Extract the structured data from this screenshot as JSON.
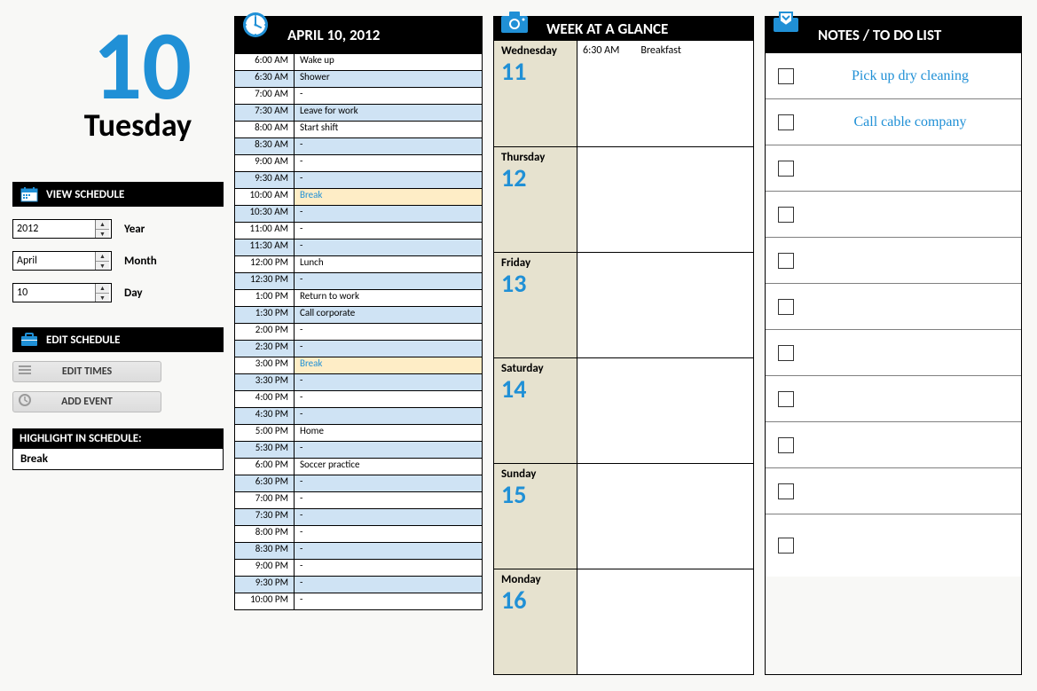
{
  "accent_color": "#2090d6",
  "alt_row_color": "#cfe3f4",
  "highlight_row_color": "#feedc6",
  "week_left_bg": "#e6e2cf",
  "sidebar": {
    "big_date": "10",
    "weekday": "Tuesday",
    "view_hdr": "VIEW SCHEDULE",
    "year_label": "Year",
    "year_value": "2012",
    "month_label": "Month",
    "month_value": "April",
    "day_label": "Day",
    "day_value": "10",
    "edit_hdr": "EDIT SCHEDULE",
    "btn_edit_times": "EDIT TIMES",
    "btn_add_event": "ADD EVENT",
    "highlight_hdr": "HIGHLIGHT IN SCHEDULE:",
    "highlight_value": "Break"
  },
  "schedule": {
    "header": "APRIL 10, 2012",
    "rows": [
      {
        "time": "6:00 AM",
        "event": "Wake up",
        "alt": false,
        "hl": false
      },
      {
        "time": "6:30 AM",
        "event": "Shower",
        "alt": true,
        "hl": false
      },
      {
        "time": "7:00 AM",
        "event": "-",
        "alt": false,
        "hl": false
      },
      {
        "time": "7:30 AM",
        "event": "Leave for work",
        "alt": true,
        "hl": false
      },
      {
        "time": "8:00 AM",
        "event": "Start shift",
        "alt": false,
        "hl": false
      },
      {
        "time": "8:30 AM",
        "event": "-",
        "alt": true,
        "hl": false
      },
      {
        "time": "9:00 AM",
        "event": "-",
        "alt": false,
        "hl": false
      },
      {
        "time": "9:30 AM",
        "event": "-",
        "alt": true,
        "hl": false
      },
      {
        "time": "10:00 AM",
        "event": "Break",
        "alt": false,
        "hl": true
      },
      {
        "time": "10:30 AM",
        "event": "-",
        "alt": true,
        "hl": false
      },
      {
        "time": "11:00 AM",
        "event": "-",
        "alt": false,
        "hl": false
      },
      {
        "time": "11:30 AM",
        "event": "-",
        "alt": true,
        "hl": false
      },
      {
        "time": "12:00 PM",
        "event": "Lunch",
        "alt": false,
        "hl": false
      },
      {
        "time": "12:30 PM",
        "event": "-",
        "alt": true,
        "hl": false
      },
      {
        "time": "1:00 PM",
        "event": "Return to work",
        "alt": false,
        "hl": false
      },
      {
        "time": "1:30 PM",
        "event": "Call corporate",
        "alt": true,
        "hl": false
      },
      {
        "time": "2:00 PM",
        "event": "-",
        "alt": false,
        "hl": false
      },
      {
        "time": "2:30 PM",
        "event": "-",
        "alt": true,
        "hl": false
      },
      {
        "time": "3:00 PM",
        "event": "Break",
        "alt": false,
        "hl": true
      },
      {
        "time": "3:30 PM",
        "event": "-",
        "alt": true,
        "hl": false
      },
      {
        "time": "4:00 PM",
        "event": "-",
        "alt": false,
        "hl": false
      },
      {
        "time": "4:30 PM",
        "event": "-",
        "alt": true,
        "hl": false
      },
      {
        "time": "5:00 PM",
        "event": "Home",
        "alt": false,
        "hl": false
      },
      {
        "time": "5:30 PM",
        "event": "-",
        "alt": true,
        "hl": false
      },
      {
        "time": "6:00 PM",
        "event": "Soccer practice",
        "alt": false,
        "hl": false
      },
      {
        "time": "6:30 PM",
        "event": "-",
        "alt": true,
        "hl": false
      },
      {
        "time": "7:00 PM",
        "event": "-",
        "alt": false,
        "hl": false
      },
      {
        "time": "7:30 PM",
        "event": "-",
        "alt": true,
        "hl": false
      },
      {
        "time": "8:00 PM",
        "event": "-",
        "alt": false,
        "hl": false
      },
      {
        "time": "8:30 PM",
        "event": "-",
        "alt": true,
        "hl": false
      },
      {
        "time": "9:00 PM",
        "event": "-",
        "alt": false,
        "hl": false
      },
      {
        "time": "9:30 PM",
        "event": "-",
        "alt": true,
        "hl": false
      },
      {
        "time": "10:00 PM",
        "event": "-",
        "alt": false,
        "hl": false
      }
    ]
  },
  "week": {
    "header": "WEEK AT A GLANCE",
    "days": [
      {
        "weekday": "Wednesday",
        "num": "11",
        "events": [
          {
            "time": "6:30 AM",
            "label": "Breakfast"
          }
        ]
      },
      {
        "weekday": "Thursday",
        "num": "12",
        "events": []
      },
      {
        "weekday": "Friday",
        "num": "13",
        "events": []
      },
      {
        "weekday": "Saturday",
        "num": "14",
        "events": []
      },
      {
        "weekday": "Sunday",
        "num": "15",
        "events": []
      },
      {
        "weekday": "Monday",
        "num": "16",
        "events": []
      }
    ]
  },
  "notes": {
    "header": "NOTES / TO DO LIST",
    "items": [
      {
        "text": "Pick up dry cleaning"
      },
      {
        "text": "Call cable company"
      },
      {
        "text": ""
      },
      {
        "text": ""
      },
      {
        "text": ""
      },
      {
        "text": ""
      },
      {
        "text": ""
      },
      {
        "text": ""
      },
      {
        "text": ""
      },
      {
        "text": ""
      },
      {
        "text": ""
      }
    ]
  }
}
